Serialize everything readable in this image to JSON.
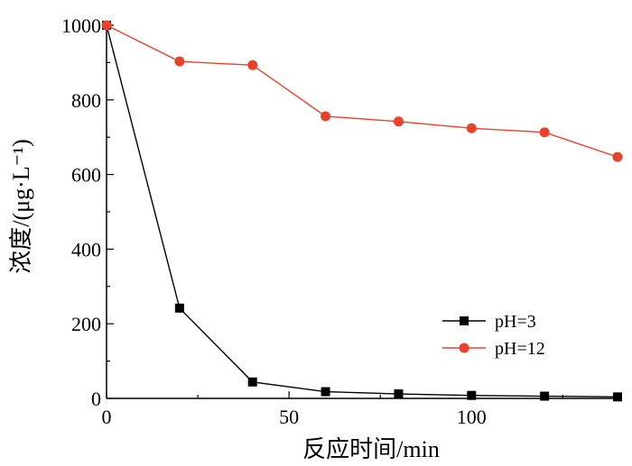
{
  "chart_data": {
    "type": "line",
    "xlabel": "反应时间/min",
    "ylabel": "浓度/(μg·L⁻¹)",
    "xlim": [
      0,
      140
    ],
    "ylim": [
      0,
      1000
    ],
    "xticks": [
      0,
      50,
      100
    ],
    "yticks": [
      0,
      200,
      400,
      600,
      800,
      1000
    ],
    "grid": false,
    "legend_position": "bottom-right",
    "series": [
      {
        "name": "pH=3",
        "color": "#000000",
        "marker": "square",
        "x": [
          0,
          20,
          40,
          60,
          80,
          100,
          120,
          140
        ],
        "y": [
          1000,
          242,
          44,
          18,
          12,
          8,
          6,
          4
        ]
      },
      {
        "name": "pH=12",
        "color": "#e8412c",
        "marker": "circle",
        "x": [
          0,
          20,
          40,
          60,
          80,
          100,
          120,
          140
        ],
        "y": [
          1000,
          903,
          893,
          756,
          742,
          724,
          713,
          647
        ]
      }
    ]
  }
}
